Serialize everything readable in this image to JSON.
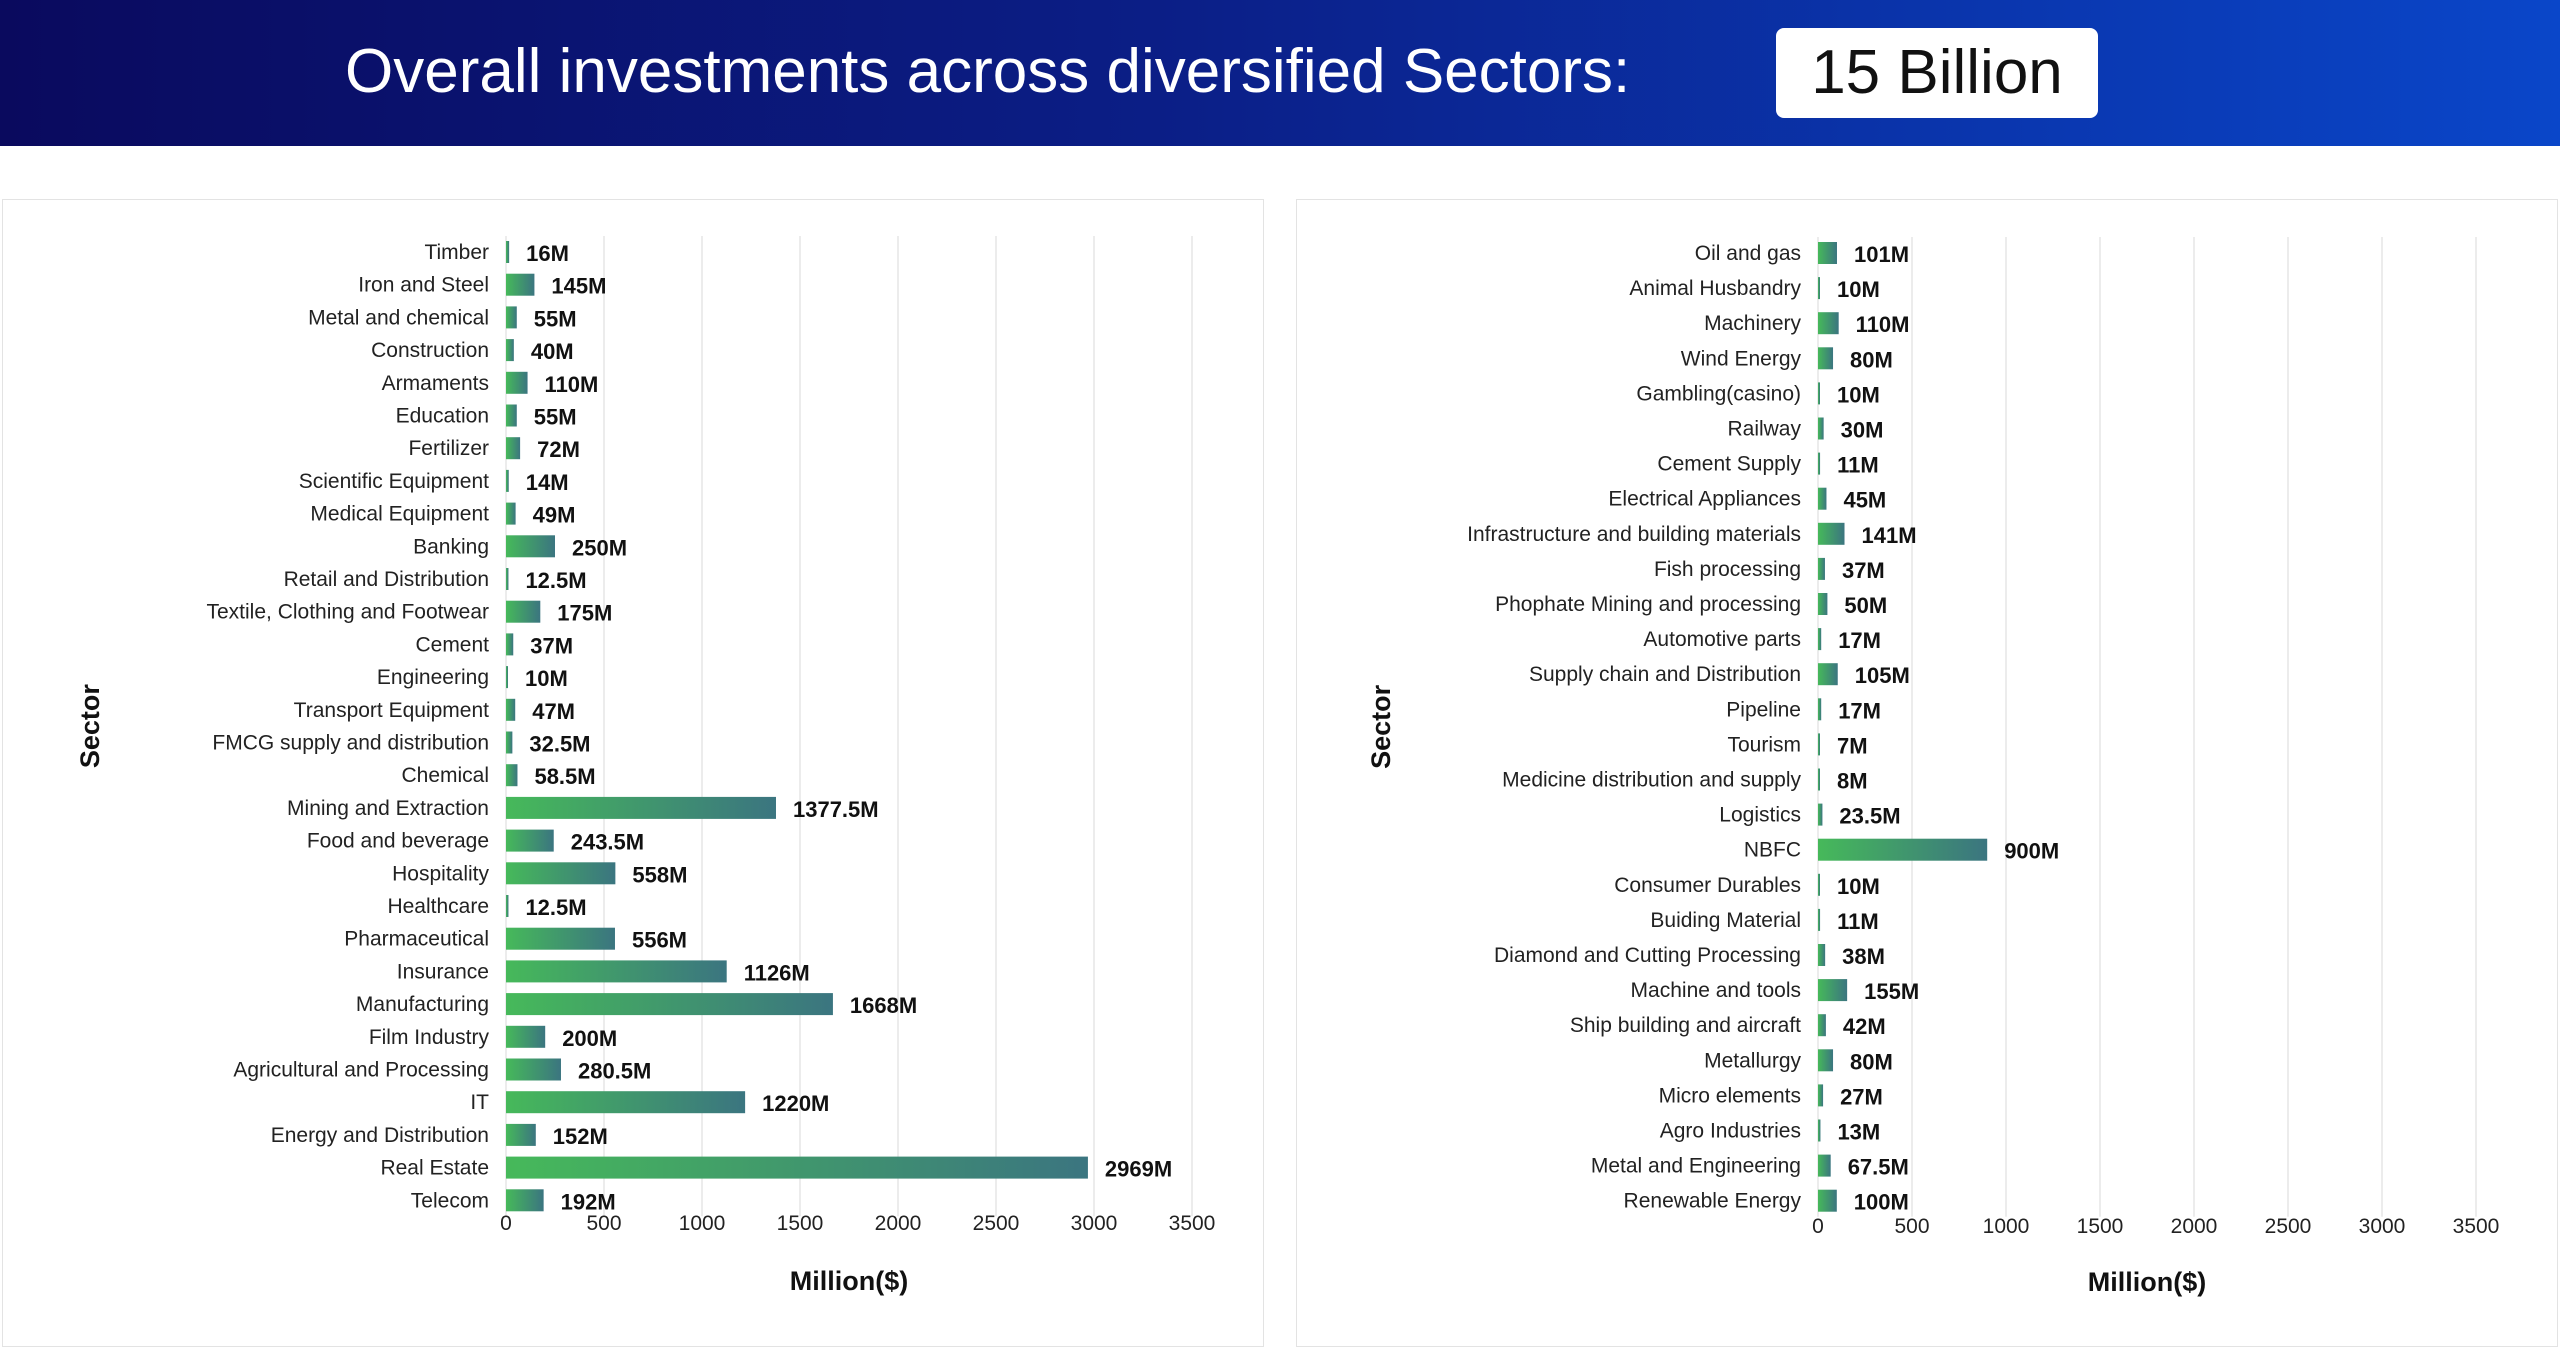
{
  "header": {
    "title": "Overall investments across diversified Sectors:",
    "total_badge": "15 Billion"
  },
  "colors": {
    "banner_start": "#0a0a5e",
    "banner_end": "#0a46c9",
    "bar_start": "#46b95a",
    "bar_end": "#3b7580",
    "gridline": "#e6e6e6"
  },
  "chart_data": [
    {
      "type": "bar",
      "orientation": "horizontal",
      "ylabel": "Sector",
      "xlabel": "Million($)",
      "xlim": [
        0,
        3500
      ],
      "xticks": [
        0,
        500,
        1000,
        1500,
        2000,
        2500,
        3000,
        3500
      ],
      "grid": true,
      "categories": [
        "Timber",
        "Iron and Steel",
        "Metal and chemical",
        "Construction",
        "Armaments",
        "Education",
        "Fertilizer",
        "Scientific Equipment",
        "Medical Equipment",
        "Banking",
        "Retail and Distribution",
        "Textile, Clothing and Footwear",
        "Cement",
        "Engineering",
        "Transport Equipment",
        "FMCG supply and distribution",
        "Chemical",
        "Mining and Extraction",
        "Food and beverage",
        "Hospitality",
        "Healthcare",
        "Pharmaceutical",
        "Insurance",
        "Manufacturing",
        "Film Industry",
        "Agricultural and Processing",
        "IT",
        "Energy and Distribution",
        "Real Estate",
        "Telecom"
      ],
      "values": [
        16,
        145,
        55,
        40,
        110,
        55,
        72,
        14,
        49,
        250,
        12.5,
        175,
        37,
        10,
        47,
        32.5,
        58.5,
        1377.5,
        243.5,
        558,
        12.5,
        556,
        1126,
        1668,
        200,
        280.5,
        1220,
        152,
        2969,
        192
      ],
      "data_labels": [
        "16M",
        "145M",
        "55M",
        "40M",
        "110M",
        "55M",
        "72M",
        "14M",
        "49M",
        "250M",
        "12.5M",
        "175M",
        "37M",
        "10M",
        "47M",
        "32.5M",
        "58.5M",
        "1377.5M",
        "243.5M",
        "558M",
        "12.5M",
        "556M",
        "1126M",
        "1668M",
        "200M",
        "280.5M",
        "1220M",
        "152M",
        "2969M",
        "192M"
      ]
    },
    {
      "type": "bar",
      "orientation": "horizontal",
      "ylabel": "Sector",
      "xlabel": "Million($)",
      "xlim": [
        0,
        3500
      ],
      "xticks": [
        0,
        500,
        1000,
        1500,
        2000,
        2500,
        3000,
        3500
      ],
      "grid": true,
      "categories": [
        "Oil and gas",
        "Animal Husbandry",
        "Machinery",
        "Wind Energy",
        "Gambling(casino)",
        "Railway",
        "Cement Supply",
        "Electrical Appliances",
        "Infrastructure and building materials",
        "Fish processing",
        "Phophate Mining and processing",
        "Automotive parts",
        "Supply chain and Distribution",
        "Pipeline",
        "Tourism",
        "Medicine distribution and supply",
        "Logistics",
        "NBFC",
        "Consumer Durables",
        "Buiding Material",
        "Diamond and Cutting Processing",
        "Machine and tools",
        "Ship building and aircraft",
        "Metallurgy",
        "Micro elements",
        "Agro Industries",
        "Metal and Engineering",
        "Renewable Energy"
      ],
      "values": [
        101,
        10,
        110,
        80,
        10,
        30,
        11,
        45,
        141,
        37,
        50,
        17,
        105,
        17,
        7,
        8,
        23.5,
        900,
        10,
        11,
        38,
        155,
        42,
        80,
        27,
        13,
        67.5,
        100
      ],
      "data_labels": [
        "101M",
        "10M",
        "110M",
        "80M",
        "10M",
        "30M",
        "11M",
        "45M",
        "141M",
        "37M",
        "50M",
        "17M",
        "105M",
        "17M",
        "7M",
        "8M",
        "23.5M",
        "900M",
        "10M",
        "11M",
        "38M",
        "155M",
        "42M",
        "80M",
        "27M",
        "13M",
        "67.5M",
        "100M"
      ]
    }
  ]
}
